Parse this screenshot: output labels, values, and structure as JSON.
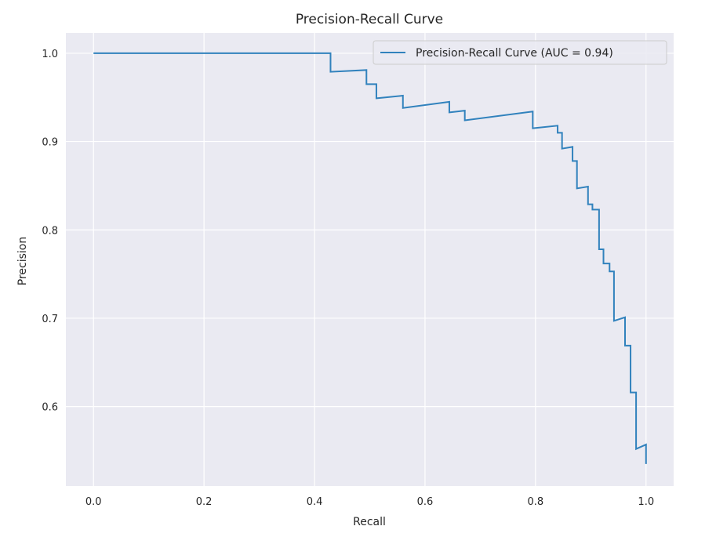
{
  "chart_data": {
    "type": "line",
    "title": "Precision-Recall Curve",
    "xlabel": "Recall",
    "ylabel": "Precision",
    "xlim": [
      -0.05,
      1.05
    ],
    "ylim": [
      0.51,
      1.023
    ],
    "xticks": [
      0.0,
      0.2,
      0.4,
      0.6,
      0.8,
      1.0
    ],
    "xtick_labels": [
      "0.0",
      "0.2",
      "0.4",
      "0.6",
      "0.8",
      "1.0"
    ],
    "yticks": [
      0.6,
      0.7,
      0.8,
      0.9,
      1.0
    ],
    "ytick_labels": [
      "0.6",
      "0.7",
      "0.8",
      "0.9",
      "1.0"
    ],
    "grid": true,
    "legend_position": "top-right",
    "colors": {
      "line": "#3182bd",
      "plot_bg": "#eaeaf2",
      "grid": "#ffffff"
    },
    "series": [
      {
        "name": "Precision-Recall Curve (AUC = 0.94)",
        "x": [
          0.0,
          0.429,
          0.429,
          0.494,
          0.494,
          0.512,
          0.512,
          0.56,
          0.56,
          0.644,
          0.644,
          0.672,
          0.672,
          0.795,
          0.795,
          0.84,
          0.84,
          0.848,
          0.848,
          0.867,
          0.867,
          0.875,
          0.875,
          0.895,
          0.895,
          0.903,
          0.903,
          0.915,
          0.915,
          0.923,
          0.923,
          0.934,
          0.934,
          0.942,
          0.942,
          0.962,
          0.962,
          0.972,
          0.972,
          0.982,
          0.982,
          1.0,
          1.0
        ],
        "y": [
          1.0,
          1.0,
          0.979,
          0.981,
          0.965,
          0.965,
          0.949,
          0.952,
          0.938,
          0.945,
          0.933,
          0.935,
          0.924,
          0.934,
          0.915,
          0.918,
          0.91,
          0.91,
          0.892,
          0.894,
          0.878,
          0.878,
          0.847,
          0.849,
          0.829,
          0.829,
          0.823,
          0.823,
          0.778,
          0.778,
          0.762,
          0.762,
          0.753,
          0.753,
          0.697,
          0.701,
          0.669,
          0.669,
          0.616,
          0.616,
          0.552,
          0.557,
          0.535
        ]
      }
    ]
  }
}
